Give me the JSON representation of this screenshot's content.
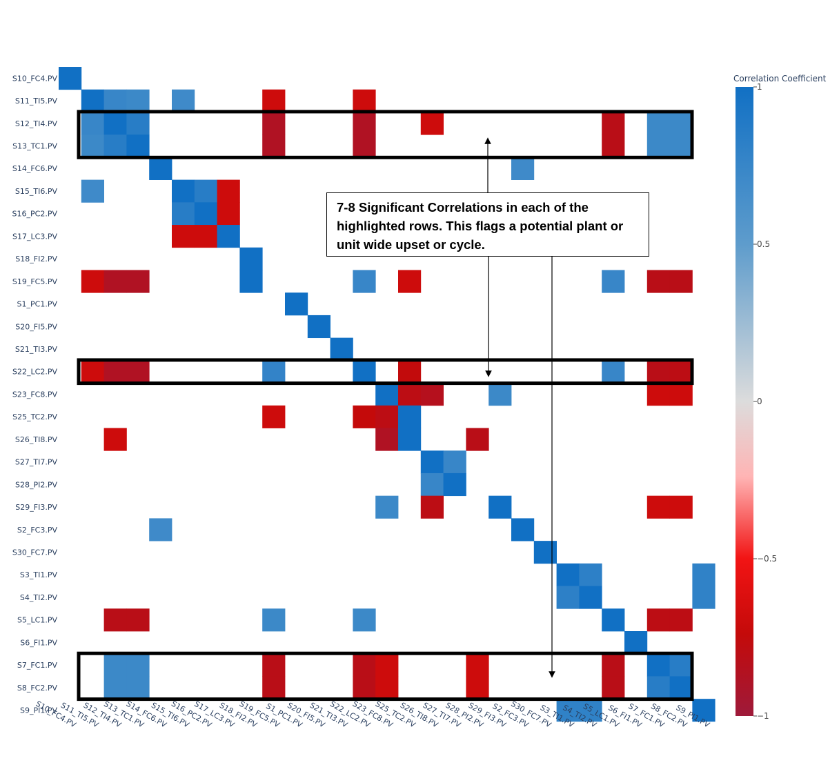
{
  "chart_data": {
    "type": "heatmap",
    "categories": [
      "S10_FC4.PV",
      "S11_TI5.PV",
      "S12_TI4.PV",
      "S13_TC1.PV",
      "S14_FC6.PV",
      "S15_TI6.PV",
      "S16_PC2.PV",
      "S17_LC3.PV",
      "S18_FI2.PV",
      "S19_FC5.PV",
      "S1_PC1.PV",
      "S20_FI5.PV",
      "S21_TI3.PV",
      "S22_LC2.PV",
      "S23_FC8.PV",
      "S25_TC2.PV",
      "S26_TI8.PV",
      "S27_TI7.PV",
      "S28_PI2.PV",
      "S29_FI3.PV",
      "S2_FC3.PV",
      "S30_FC7.PV",
      "S3_TI1.PV",
      "S4_TI2.PV",
      "S5_LC1.PV",
      "S6_FI1.PV",
      "S7_FC1.PV",
      "S8_FC2.PV",
      "S9_PI1.PV"
    ],
    "cells": [
      [
        0,
        0,
        1
      ],
      [
        1,
        1,
        1
      ],
      [
        1,
        2,
        0.75
      ],
      [
        1,
        3,
        0.72
      ],
      [
        1,
        5,
        0.7
      ],
      [
        1,
        9,
        -0.7
      ],
      [
        1,
        13,
        -0.7
      ],
      [
        2,
        1,
        0.75
      ],
      [
        2,
        2,
        1
      ],
      [
        2,
        3,
        0.85
      ],
      [
        2,
        9,
        -0.88
      ],
      [
        2,
        13,
        -0.88
      ],
      [
        2,
        16,
        -0.7
      ],
      [
        2,
        24,
        -0.82
      ],
      [
        2,
        26,
        0.72
      ],
      [
        2,
        27,
        0.72
      ],
      [
        3,
        1,
        0.72
      ],
      [
        3,
        2,
        0.85
      ],
      [
        3,
        3,
        1
      ],
      [
        3,
        9,
        -0.88
      ],
      [
        3,
        13,
        -0.88
      ],
      [
        3,
        24,
        -0.82
      ],
      [
        3,
        26,
        0.72
      ],
      [
        3,
        27,
        0.72
      ],
      [
        4,
        4,
        1
      ],
      [
        4,
        20,
        0.7
      ],
      [
        5,
        1,
        0.7
      ],
      [
        5,
        5,
        1
      ],
      [
        5,
        6,
        0.85
      ],
      [
        5,
        7,
        -0.7
      ],
      [
        6,
        5,
        0.85
      ],
      [
        6,
        6,
        1
      ],
      [
        6,
        7,
        -0.7
      ],
      [
        7,
        5,
        -0.7
      ],
      [
        7,
        6,
        -0.7
      ],
      [
        7,
        7,
        1
      ],
      [
        8,
        8,
        1
      ],
      [
        9,
        1,
        -0.7
      ],
      [
        9,
        2,
        -0.88
      ],
      [
        9,
        3,
        -0.88
      ],
      [
        9,
        8,
        1
      ],
      [
        9,
        13,
        0.75
      ],
      [
        9,
        15,
        -0.7
      ],
      [
        9,
        24,
        0.75
      ],
      [
        9,
        26,
        -0.82
      ],
      [
        9,
        27,
        -0.82
      ],
      [
        10,
        10,
        1
      ],
      [
        11,
        11,
        1
      ],
      [
        12,
        12,
        1
      ],
      [
        13,
        1,
        -0.7
      ],
      [
        13,
        2,
        -0.88
      ],
      [
        13,
        3,
        -0.88
      ],
      [
        13,
        9,
        0.78
      ],
      [
        13,
        13,
        1
      ],
      [
        13,
        15,
        -0.76
      ],
      [
        13,
        24,
        0.75
      ],
      [
        13,
        26,
        -0.82
      ],
      [
        13,
        27,
        -0.8
      ],
      [
        14,
        14,
        1
      ],
      [
        14,
        15,
        -0.8
      ],
      [
        14,
        16,
        -0.85
      ],
      [
        14,
        19,
        0.72
      ],
      [
        14,
        26,
        -0.7
      ],
      [
        14,
        27,
        -0.7
      ],
      [
        15,
        9,
        -0.7
      ],
      [
        15,
        13,
        -0.75
      ],
      [
        15,
        14,
        -0.8
      ],
      [
        15,
        15,
        1
      ],
      [
        16,
        2,
        -0.7
      ],
      [
        16,
        14,
        -0.88
      ],
      [
        16,
        15,
        1
      ],
      [
        16,
        18,
        -0.82
      ],
      [
        17,
        16,
        1
      ],
      [
        17,
        17,
        0.75
      ],
      [
        18,
        16,
        0.75
      ],
      [
        18,
        17,
        1
      ],
      [
        19,
        14,
        0.72
      ],
      [
        19,
        16,
        -0.8
      ],
      [
        19,
        19,
        1
      ],
      [
        19,
        26,
        -0.7
      ],
      [
        19,
        27,
        -0.7
      ],
      [
        20,
        4,
        0.7
      ],
      [
        20,
        20,
        1
      ],
      [
        21,
        21,
        1
      ],
      [
        22,
        22,
        1
      ],
      [
        22,
        23,
        0.82
      ],
      [
        22,
        28,
        0.8
      ],
      [
        23,
        22,
        0.82
      ],
      [
        23,
        23,
        1
      ],
      [
        23,
        28,
        0.8
      ],
      [
        24,
        2,
        -0.82
      ],
      [
        24,
        3,
        -0.82
      ],
      [
        24,
        9,
        0.72
      ],
      [
        24,
        13,
        0.72
      ],
      [
        24,
        24,
        1
      ],
      [
        24,
        26,
        -0.8
      ],
      [
        24,
        27,
        -0.8
      ],
      [
        25,
        25,
        1
      ],
      [
        26,
        2,
        0.72
      ],
      [
        26,
        3,
        0.72
      ],
      [
        26,
        9,
        -0.82
      ],
      [
        26,
        13,
        -0.82
      ],
      [
        26,
        14,
        -0.7
      ],
      [
        26,
        18,
        -0.7
      ],
      [
        26,
        24,
        -0.82
      ],
      [
        26,
        26,
        1
      ],
      [
        26,
        27,
        0.85
      ],
      [
        27,
        2,
        0.72
      ],
      [
        27,
        3,
        0.72
      ],
      [
        27,
        9,
        -0.82
      ],
      [
        27,
        13,
        -0.82
      ],
      [
        27,
        14,
        -0.7
      ],
      [
        27,
        18,
        -0.7
      ],
      [
        27,
        24,
        -0.82
      ],
      [
        27,
        26,
        0.85
      ],
      [
        27,
        27,
        1
      ],
      [
        28,
        22,
        0.8
      ],
      [
        28,
        23,
        0.8
      ],
      [
        28,
        28,
        1
      ]
    ],
    "colorscale": {
      "title": "Correlation Coefficient",
      "range": [
        -1,
        1
      ],
      "ticks": [
        1,
        0.5,
        0,
        -0.5,
        -1
      ],
      "tick_labels": [
        "1",
        "0.5",
        "0",
        "−0.5",
        "−1"
      ],
      "stops": [
        [
          "-1",
          "#9e1a3a"
        ],
        [
          "-0.75",
          "#c40a0a"
        ],
        [
          "-0.5",
          "#f21414"
        ],
        [
          "0",
          "#dcdcdc"
        ],
        [
          "0.5",
          "#5e9ccc"
        ],
        [
          "1",
          "#1170c4"
        ]
      ]
    },
    "highlighted_row_groups": [
      [
        2,
        3
      ],
      [
        13,
        13
      ],
      [
        26,
        27
      ]
    ],
    "annotation": "7-8 Significant Correlations in each of the highlighted rows. This flags a potential plant or unit wide upset or cycle."
  }
}
